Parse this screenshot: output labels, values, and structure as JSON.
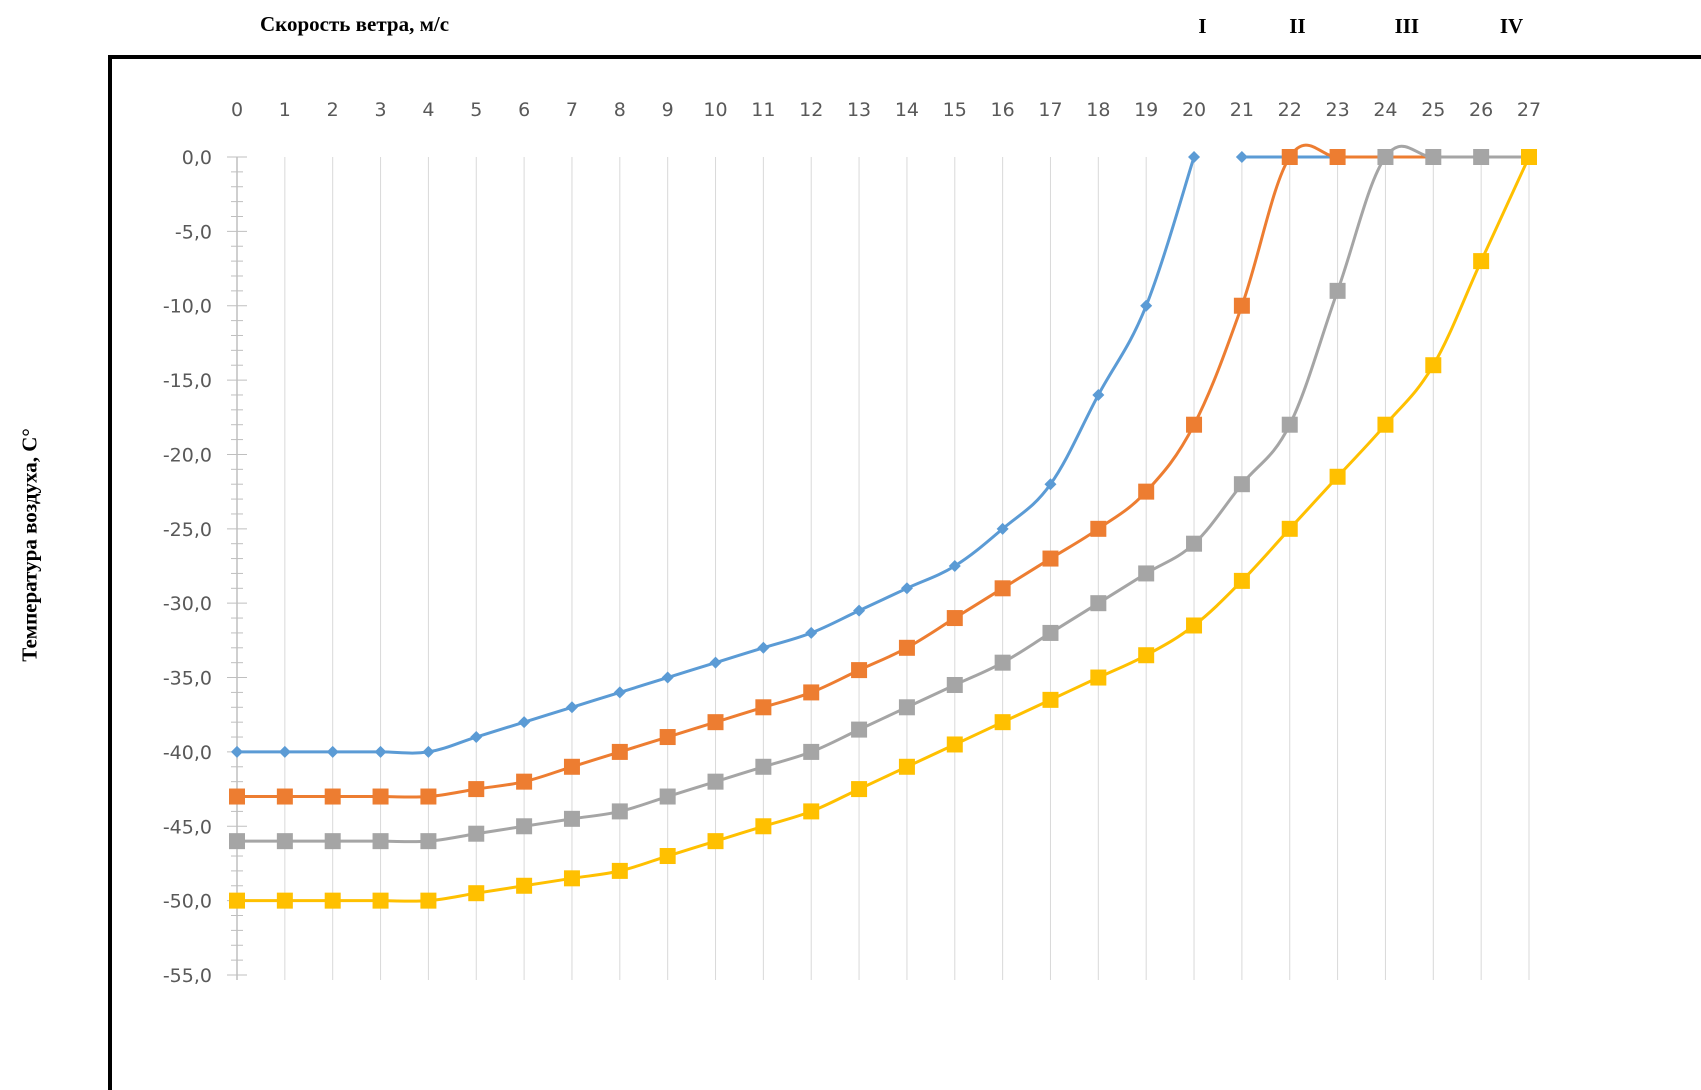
{
  "chart_data": {
    "type": "line",
    "xlabel": "Скорость ветра, м/с",
    "ylabel": "Температура воздуха, С°",
    "x_position": "top",
    "xlim": [
      0,
      27
    ],
    "ylim": [
      -55,
      0
    ],
    "y_major_step": 5,
    "y_minor_step": 1,
    "grid": "vertical lines at every x",
    "x_ticks": [
      "0",
      "1",
      "2",
      "3",
      "4",
      "5",
      "6",
      "7",
      "8",
      "9",
      "10",
      "11",
      "12",
      "13",
      "14",
      "15",
      "16",
      "17",
      "18",
      "19",
      "20",
      "21",
      "22",
      "23",
      "24",
      "25",
      "26",
      "27"
    ],
    "y_ticks": [
      "0,0",
      "-5,0",
      "-10,0",
      "-15,0",
      "-20,0",
      "-25,0",
      "-30,0",
      "-35,0",
      "-40,0",
      "-45,0",
      "-50,0",
      "-55,0"
    ],
    "zone_labels": [
      {
        "text": "I",
        "x": 20.3
      },
      {
        "text": "II",
        "x": 22.2
      },
      {
        "text": "III",
        "x": 24.4
      },
      {
        "text": "IV",
        "x": 26.6
      }
    ],
    "series": [
      {
        "color": "#5b9bd5",
        "marker": "diamond",
        "x": [
          0,
          1,
          2,
          3,
          4,
          5,
          6,
          7,
          8,
          9,
          10,
          11,
          12,
          13,
          14,
          15,
          16,
          17,
          18,
          19,
          20,
          21,
          22,
          23,
          24,
          25,
          26,
          27
        ],
        "y": [
          -40,
          -40,
          -40,
          -40,
          -40,
          -39,
          -38,
          -37,
          -36,
          -35,
          -34,
          -33,
          -32,
          -30.5,
          -29,
          -27.5,
          -25,
          -22,
          -16,
          -10,
          0,
          0,
          0,
          0,
          0,
          0,
          0,
          0
        ],
        "marker_from": 0,
        "marker_to": 21,
        "line_gap_after": 20
      },
      {
        "color": "#ed7d31",
        "marker": "square",
        "x": [
          0,
          1,
          2,
          3,
          4,
          5,
          6,
          7,
          8,
          9,
          10,
          11,
          12,
          13,
          14,
          15,
          16,
          17,
          18,
          19,
          20,
          21,
          22,
          23,
          24,
          25,
          26,
          27
        ],
        "y": [
          -43,
          -43,
          -43,
          -43,
          -43,
          -42.5,
          -42,
          -41,
          -40,
          -39,
          -38,
          -37,
          -36,
          -34.5,
          -33,
          -31,
          -29,
          -27,
          -25,
          -22.5,
          -18,
          -10,
          0,
          0,
          0,
          0,
          0,
          0
        ],
        "marker_from": 0,
        "marker_to": 23
      },
      {
        "color": "#a5a5a5",
        "marker": "square",
        "x": [
          0,
          1,
          2,
          3,
          4,
          5,
          6,
          7,
          8,
          9,
          10,
          11,
          12,
          13,
          14,
          15,
          16,
          17,
          18,
          19,
          20,
          21,
          22,
          23,
          24,
          25,
          26,
          27
        ],
        "y": [
          -46,
          -46,
          -46,
          -46,
          -46,
          -45.5,
          -45,
          -44.5,
          -44,
          -43,
          -42,
          -41,
          -40,
          -38.5,
          -37,
          -35.5,
          -34,
          -32,
          -30,
          -28,
          -26,
          -22,
          -18,
          -9,
          0,
          0,
          0,
          0
        ],
        "marker_from": 0,
        "marker_to": 26
      },
      {
        "color": "#ffc000",
        "marker": "square",
        "x": [
          0,
          1,
          2,
          3,
          4,
          5,
          6,
          7,
          8,
          9,
          10,
          11,
          12,
          13,
          14,
          15,
          16,
          17,
          18,
          19,
          20,
          21,
          22,
          23,
          24,
          25,
          26,
          27
        ],
        "y": [
          -50,
          -50,
          -50,
          -50,
          -50,
          -49.5,
          -49,
          -48.5,
          -48,
          -47,
          -46,
          -45,
          -44,
          -42.5,
          -41,
          -39.5,
          -38,
          -36.5,
          -35,
          -33.5,
          -31.5,
          -28.5,
          -25,
          -21.5,
          -18,
          -14,
          -7,
          0
        ],
        "marker_from": 0,
        "marker_to": 27
      }
    ]
  }
}
